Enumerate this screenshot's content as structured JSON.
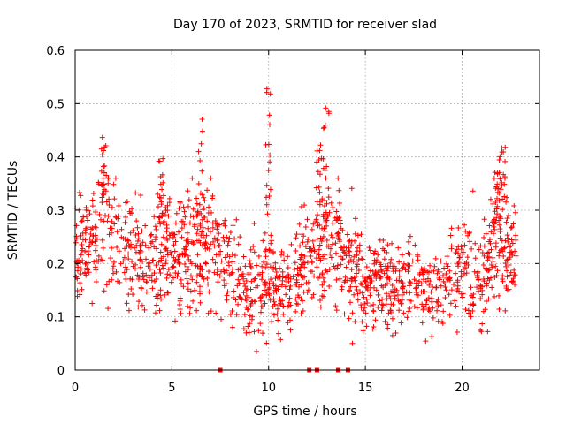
{
  "chart_data": {
    "type": "scatter",
    "title": "Day 170 of 2023, SRMTID for receiver slad",
    "xlabel": "GPS time / hours",
    "ylabel": "SRMTID / TECUs",
    "xlim": [
      0,
      24
    ],
    "ylim": [
      0,
      0.6
    ],
    "xticks": [
      0,
      5,
      10,
      15,
      20
    ],
    "xtick_labels": [
      "0",
      "5",
      "10",
      "15",
      "20"
    ],
    "yticks": [
      0,
      0.1,
      0.2,
      0.3,
      0.4,
      0.5,
      0.6
    ],
    "ytick_labels": [
      "0",
      "0.1",
      "0.2",
      "0.3",
      "0.4",
      "0.5",
      "0.6"
    ],
    "grid": true,
    "marker": "plus",
    "color": "#ff0000",
    "series": [
      {
        "name": "SRMTID",
        "profile_hours": [
          0,
          0.5,
          1,
          1.5,
          2,
          2.5,
          3,
          3.5,
          4,
          4.5,
          5,
          5.5,
          6,
          6.5,
          7,
          7.5,
          8,
          8.5,
          9,
          9.5,
          10,
          10.5,
          11,
          11.5,
          12,
          12.5,
          13,
          13.5,
          14,
          14.5,
          15,
          15.5,
          16,
          16.5,
          17,
          17.5,
          18,
          18.5,
          19,
          19.5,
          20,
          20.5,
          21,
          21.5,
          22,
          22.5
        ],
        "profile_median": [
          0.21,
          0.23,
          0.24,
          0.27,
          0.25,
          0.23,
          0.24,
          0.2,
          0.19,
          0.24,
          0.23,
          0.22,
          0.23,
          0.21,
          0.24,
          0.2,
          0.19,
          0.17,
          0.14,
          0.16,
          0.17,
          0.14,
          0.15,
          0.18,
          0.2,
          0.22,
          0.23,
          0.25,
          0.21,
          0.2,
          0.15,
          0.16,
          0.17,
          0.16,
          0.17,
          0.18,
          0.16,
          0.14,
          0.16,
          0.18,
          0.2,
          0.18,
          0.17,
          0.21,
          0.23,
          0.22
        ],
        "profile_spread": [
          0.06,
          0.07,
          0.08,
          0.09,
          0.08,
          0.07,
          0.08,
          0.07,
          0.06,
          0.07,
          0.07,
          0.07,
          0.08,
          0.07,
          0.08,
          0.07,
          0.06,
          0.06,
          0.05,
          0.06,
          0.06,
          0.05,
          0.06,
          0.06,
          0.06,
          0.07,
          0.07,
          0.08,
          0.07,
          0.07,
          0.05,
          0.05,
          0.06,
          0.06,
          0.06,
          0.06,
          0.05,
          0.05,
          0.05,
          0.06,
          0.06,
          0.07,
          0.07,
          0.07,
          0.08,
          0.07
        ],
        "peaks": [
          {
            "x": 1.5,
            "y": 0.45
          },
          {
            "x": 4.4,
            "y": 0.42
          },
          {
            "x": 6.5,
            "y": 0.48
          },
          {
            "x": 10.0,
            "y": 0.53
          },
          {
            "x": 12.6,
            "y": 0.43
          },
          {
            "x": 13.0,
            "y": 0.5
          },
          {
            "x": 21.8,
            "y": 0.38
          },
          {
            "x": 22.1,
            "y": 0.43
          }
        ],
        "zero_points_x": [
          7.5,
          12.1,
          12.5,
          13.6,
          14.1
        ],
        "n_points": 1500,
        "x_start": 0,
        "x_end": 22.8
      }
    ]
  }
}
